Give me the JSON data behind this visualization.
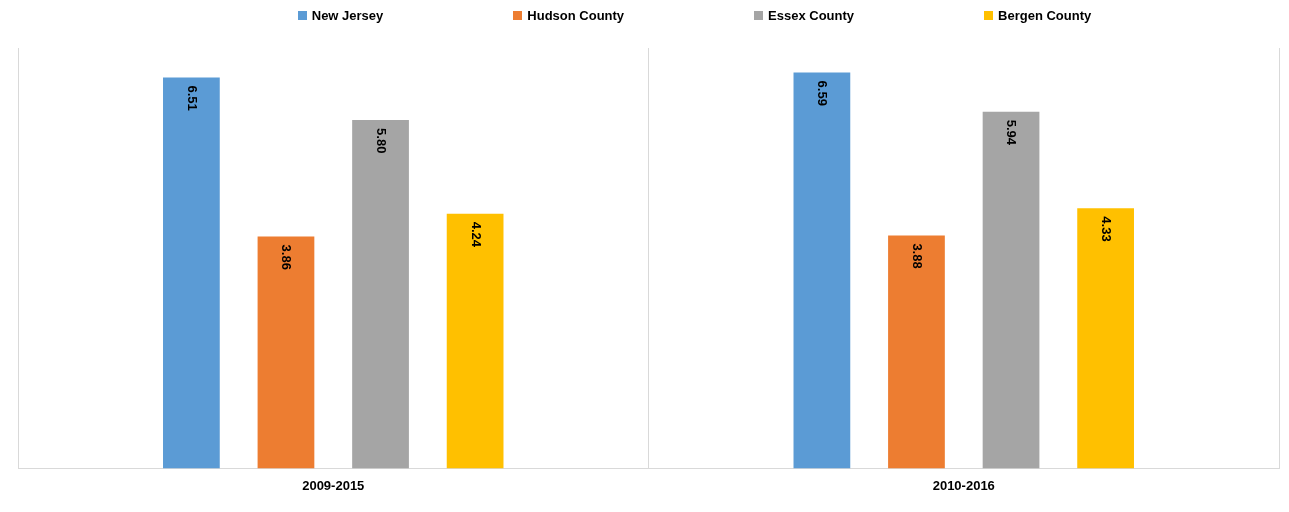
{
  "chart_data": {
    "type": "bar",
    "categories": [
      "2009-2015",
      "2010-2016"
    ],
    "series": [
      {
        "name": "New Jersey",
        "color": "#5b9bd5",
        "values": [
          6.51,
          6.59
        ],
        "value_labels": [
          "6.51",
          "6.59"
        ]
      },
      {
        "name": "Hudson County",
        "color": "#ed7d31",
        "values": [
          3.86,
          3.88
        ],
        "value_labels": [
          "3.86",
          "3.88"
        ]
      },
      {
        "name": "Essex County",
        "color": "#a5a5a5",
        "values": [
          5.8,
          5.94
        ],
        "value_labels": [
          "5.80",
          "5.94"
        ]
      },
      {
        "name": "Bergen County",
        "color": "#ffc000",
        "values": [
          4.24,
          4.33
        ],
        "value_labels": [
          "4.24",
          "4.33"
        ]
      }
    ],
    "legend": "top",
    "grid": "x",
    "tick_labels": "x"
  }
}
